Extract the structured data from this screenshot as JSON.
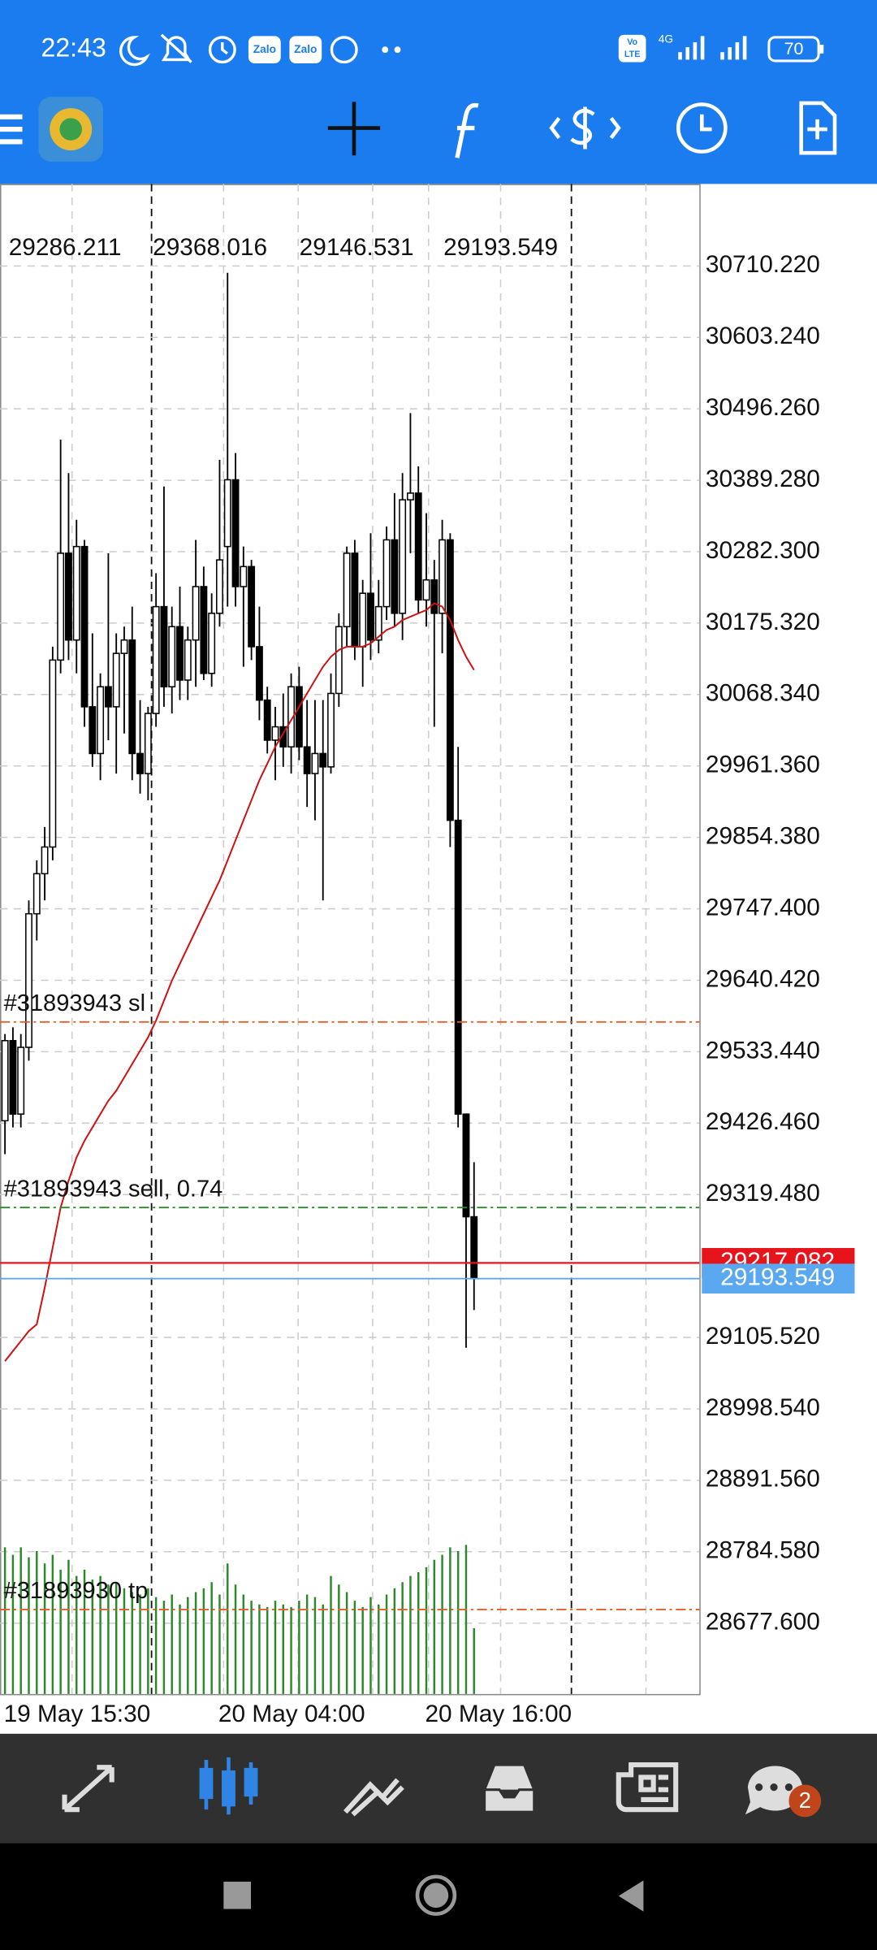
{
  "status_bar": {
    "time": "22:43",
    "apps": [
      "Zalo",
      "Zalo"
    ],
    "volte": [
      "Vo",
      "LTE"
    ],
    "network": "4G",
    "battery": "70"
  },
  "chart_data": {
    "type": "candlestick",
    "categories": [
      "19 May 15:30",
      null,
      null,
      null,
      null,
      null,
      null,
      null,
      null,
      null,
      null,
      null,
      null,
      null,
      null,
      null,
      null,
      null,
      null,
      null,
      null,
      null,
      null,
      null,
      null,
      null,
      null,
      "20 May 04:00",
      null,
      null,
      null,
      null,
      null,
      null,
      null,
      null,
      null,
      null,
      null,
      null,
      null,
      null,
      null,
      null,
      null,
      null,
      null,
      null,
      null,
      null,
      null,
      null,
      null,
      "20 May 16:00",
      null,
      null,
      null,
      null,
      null,
      null
    ],
    "open": [
      29430,
      29550,
      29440,
      29540,
      29740,
      29800,
      29840,
      30120,
      30280,
      30150,
      30290,
      30050,
      29980,
      30080,
      30050,
      30130,
      30150,
      29980,
      29950,
      30040,
      30200,
      30080,
      30170,
      30090,
      30150,
      30230,
      30100,
      30190,
      30290,
      30390,
      30230,
      30260,
      30140,
      30060,
      30000,
      30020,
      29990,
      30080,
      29990,
      29950,
      29980,
      29960,
      30070,
      30170,
      30280,
      30140,
      30220,
      30150,
      30200,
      30300,
      30190,
      30360,
      30370,
      30210,
      30240,
      30190,
      30300,
      29880,
      29440,
      29286.211
    ],
    "high": [
      29560,
      29570,
      29560,
      29760,
      29820,
      29870,
      30140,
      30450,
      30400,
      30330,
      30300,
      30160,
      30100,
      30280,
      30160,
      30170,
      30200,
      30060,
      30050,
      30250,
      30380,
      30200,
      30230,
      30170,
      30300,
      30260,
      30220,
      30420,
      30700,
      30430,
      30290,
      30270,
      30200,
      30080,
      30050,
      30070,
      30100,
      30110,
      30060,
      30060,
      30060,
      30100,
      30190,
      30290,
      30300,
      30240,
      30310,
      30240,
      30320,
      30370,
      30400,
      30490,
      30410,
      30340,
      30270,
      30330,
      30310,
      29990,
      29440,
      29368.016
    ],
    "low": [
      29380,
      29420,
      29420,
      29520,
      29700,
      29760,
      29820,
      30100,
      30120,
      30100,
      30020,
      29960,
      29940,
      30000,
      29950,
      30010,
      29940,
      29920,
      29910,
      30020,
      30050,
      30040,
      30060,
      30060,
      30080,
      30090,
      30080,
      30170,
      30200,
      30200,
      30110,
      30120,
      30030,
      29980,
      29940,
      29960,
      29950,
      29970,
      29900,
      29880,
      29760,
      29950,
      30050,
      30140,
      30120,
      30080,
      30120,
      30130,
      30180,
      30170,
      30150,
      30280,
      30190,
      30170,
      30020,
      30130,
      29840,
      29420,
      29090,
      29146.531
    ],
    "close": [
      29550,
      29440,
      29540,
      29740,
      29800,
      29840,
      30120,
      30280,
      30150,
      30290,
      30050,
      29980,
      30080,
      30050,
      30130,
      30150,
      29980,
      29950,
      30040,
      30200,
      30080,
      30170,
      30090,
      30150,
      30230,
      30100,
      30190,
      30270,
      30390,
      30230,
      30260,
      30140,
      30060,
      30000,
      30020,
      29990,
      30080,
      29990,
      29950,
      29980,
      29960,
      30070,
      30170,
      30280,
      30140,
      30220,
      30150,
      30200,
      30300,
      30190,
      30360,
      30370,
      30210,
      30240,
      30190,
      30300,
      29880,
      29440,
      29286.211,
      29193.549
    ],
    "ma": {
      "color": "#d01010",
      "values": [
        29070,
        29085,
        29100,
        29115,
        29125,
        29180,
        29240,
        29300,
        29340,
        29375,
        29400,
        29420,
        29440,
        29460,
        29475,
        29495,
        29515,
        29535,
        29555,
        29580,
        29610,
        29640,
        29665,
        29690,
        29715,
        29740,
        29765,
        29790,
        29820,
        29850,
        29880,
        29910,
        29940,
        29965,
        29990,
        30010,
        30030,
        30050,
        30070,
        30090,
        30110,
        30125,
        30135,
        30140,
        30140,
        30140,
        30145,
        30155,
        30165,
        30170,
        30180,
        30185,
        30190,
        30195,
        30205,
        30200,
        30180,
        30150,
        30125,
        30105
      ]
    },
    "volume": {
      "color": "#2a8a2a",
      "values": [
        118,
        112,
        118,
        110,
        115,
        105,
        112,
        100,
        108,
        95,
        100,
        92,
        95,
        88,
        90,
        85,
        82,
        80,
        85,
        78,
        75,
        80,
        72,
        78,
        82,
        85,
        90,
        80,
        105,
        88,
        80,
        75,
        72,
        70,
        75,
        72,
        70,
        75,
        80,
        78,
        72,
        95,
        88,
        82,
        75,
        70,
        78,
        72,
        80,
        85,
        90,
        95,
        98,
        102,
        108,
        112,
        118,
        115,
        120,
        53
      ]
    },
    "ylim": [
      28571.5,
      30833.07
    ],
    "yticks": [
      {
        "value": 30710.22,
        "label": "30710.220"
      },
      {
        "value": 30603.24,
        "label": "30603.240"
      },
      {
        "value": 30496.26,
        "label": "30496.260"
      },
      {
        "value": 30389.28,
        "label": "30389.280"
      },
      {
        "value": 30282.3,
        "label": "30282.300"
      },
      {
        "value": 30175.32,
        "label": "30175.320"
      },
      {
        "value": 30068.34,
        "label": "30068.340"
      },
      {
        "value": 29961.36,
        "label": "29961.360"
      },
      {
        "value": 29854.38,
        "label": "29854.380"
      },
      {
        "value": 29747.4,
        "label": "29747.400"
      },
      {
        "value": 29640.42,
        "label": "29640.420"
      },
      {
        "value": 29533.44,
        "label": "29533.440"
      },
      {
        "value": 29426.46,
        "label": "29426.460"
      },
      {
        "value": 29319.48,
        "label": "29319.480"
      },
      {
        "value": 29105.52,
        "label": "29105.520"
      },
      {
        "value": 28998.54,
        "label": "28998.540"
      },
      {
        "value": 28891.56,
        "label": "28891.560"
      },
      {
        "value": 28784.58,
        "label": "28784.580"
      },
      {
        "value": 28677.6,
        "label": "28677.600"
      }
    ],
    "ask": 29217.082,
    "ask_color": "#e8141c",
    "bid_color": "#5aa9f0",
    "orders": [
      {
        "label": "#31893943 sl",
        "value": 29578,
        "color": "#e0602a"
      },
      {
        "label": "#31893943 sell, 0.74",
        "value": 29300,
        "color": "#2a8a2a"
      },
      {
        "label": "#31893930 tp",
        "value": 28698,
        "color": "#e0602a"
      }
    ],
    "grid": true
  },
  "bottom_nav": {
    "badge": "2"
  }
}
